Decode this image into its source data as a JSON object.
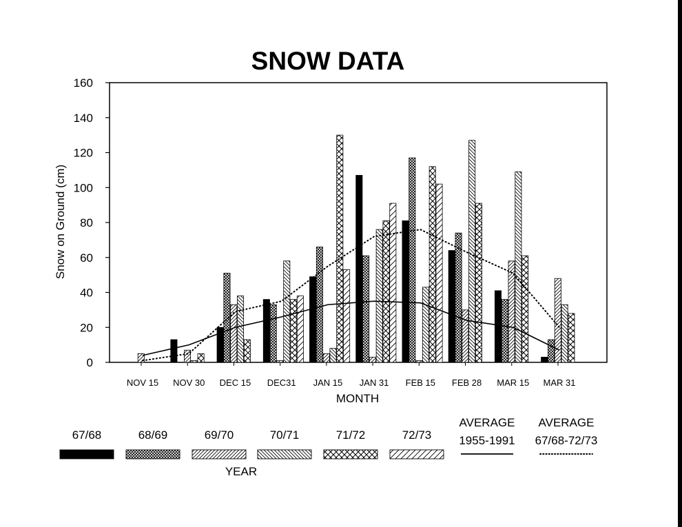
{
  "chart_data": {
    "type": "bar",
    "title": "SNOW DATA",
    "xlabel": "MONTH",
    "ylabel": "Snow on Ground (cm)",
    "ylim": [
      0,
      160
    ],
    "yticks": [
      "0",
      "20",
      "40",
      "60",
      "80",
      "100",
      "120",
      "140",
      "160"
    ],
    "categories": [
      "NOV 15",
      "NOV 30",
      "DEC 15",
      "DEC31",
      "JAN 15",
      "JAN 31",
      "FEB 15",
      "FEB 28",
      "MAR 15",
      "MAR 31"
    ],
    "series": [
      {
        "name": "67/68",
        "pattern": "solid",
        "values": [
          0,
          13,
          20,
          36,
          49,
          107,
          81,
          64,
          41,
          3
        ]
      },
      {
        "name": "68/69",
        "pattern": "crosshatch-fine",
        "values": [
          0,
          0,
          51,
          33,
          66,
          61,
          117,
          74,
          36,
          13
        ]
      },
      {
        "name": "69/70",
        "pattern": "hatch-right",
        "values": [
          5,
          7,
          33,
          1,
          5,
          3,
          1,
          30,
          58,
          48
        ]
      },
      {
        "name": "70/71",
        "pattern": "hatch-left",
        "values": [
          0,
          1,
          38,
          58,
          8,
          76,
          43,
          127,
          109,
          33
        ]
      },
      {
        "name": "71/72",
        "pattern": "crosshatch-coarse",
        "values": [
          0,
          5,
          13,
          36,
          130,
          81,
          112,
          91,
          61,
          28
        ]
      },
      {
        "name": "72/73",
        "pattern": "hatch-right-wide",
        "values": [
          0,
          0,
          0,
          38,
          53,
          91,
          102,
          0,
          0,
          0
        ]
      }
    ],
    "lines": [
      {
        "name": "AVERAGE 1955-1991",
        "label_lines": [
          "AVERAGE",
          "1955-1991"
        ],
        "style": "solid",
        "values": [
          4,
          10,
          20,
          26,
          33,
          35,
          34,
          24,
          20,
          7
        ]
      },
      {
        "name": "AVERAGE 67/68-72/73",
        "label_lines": [
          "AVERAGE",
          "67/68-72/73"
        ],
        "style": "dotted",
        "values": [
          1,
          5,
          29,
          35,
          55,
          72,
          76,
          63,
          51,
          20
        ]
      }
    ],
    "legend_title": "YEAR",
    "legend_position": "bottom"
  }
}
